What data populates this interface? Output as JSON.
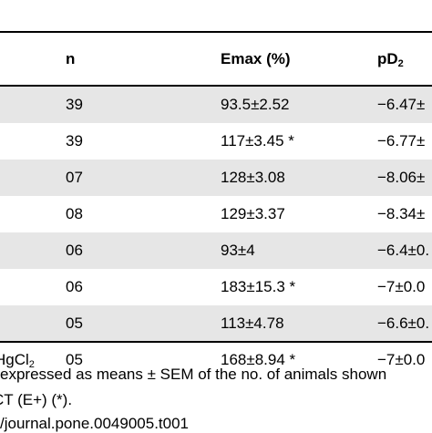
{
  "table": {
    "headers": {
      "n": "n",
      "emax": "Emax (%)",
      "pd2": "pD",
      "pd2_sub": "2"
    },
    "rows": [
      {
        "label": "",
        "label_sub": "",
        "n": "39",
        "emax": "93.5±2.52",
        "pd2": "−6.47±"
      },
      {
        "label": "",
        "label_sub": "",
        "n": "39",
        "emax": "117±3.45 *",
        "pd2": "−6.77±"
      },
      {
        "label": "",
        "label_sub": "",
        "n": "07",
        "emax": "128±3.08",
        "pd2": "−8.06±"
      },
      {
        "label": "",
        "label_sub": "",
        "n": "08",
        "emax": "129±3.37",
        "pd2": "−8.34±"
      },
      {
        "label": "",
        "label_sub": "",
        "n": "06",
        "emax": "93±4",
        "pd2": "−6.4±0."
      },
      {
        "label": "",
        "label_sub": "",
        "n": "06",
        "emax": "183±15.3 *",
        "pd2": "−7±0.0"
      },
      {
        "label": "",
        "label_sub": "",
        "n": "05",
        "emax": "113±4.78",
        "pd2": "−6.6±0."
      },
      {
        "label": "HgCl",
        "label_sub": "2",
        "n": "05",
        "emax": "168±8.94 *",
        "pd2": "−7±0.0"
      }
    ]
  },
  "footnote": {
    "line1": "expressed as means ± SEM of the no. of animals shown",
    "line2": "CT (E+) (*).",
    "line3": "/journal.pone.0049005.t001"
  }
}
